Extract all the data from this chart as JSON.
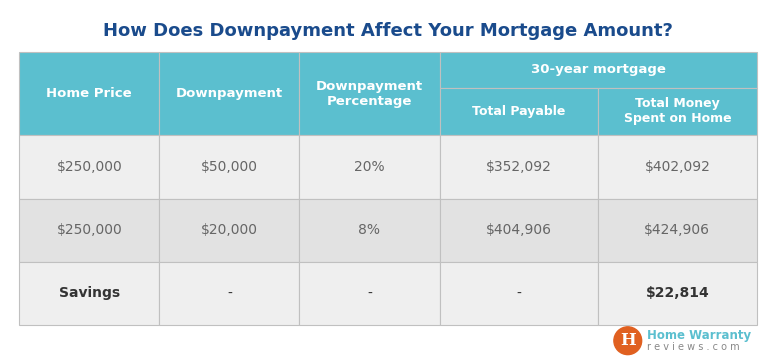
{
  "title": "How Does Downpayment Affect Your Mortgage Amount?",
  "title_color": "#1a4b8c",
  "title_fontsize": 13,
  "header_bg_color": "#5bbfcf",
  "header_text_color": "#ffffff",
  "row1_bg_color": "#efefef",
  "row2_bg_color": "#e2e2e2",
  "row3_bg_color": "#efefef",
  "body_text_color": "#666666",
  "savings_label_color": "#333333",
  "savings_value_color": "#333333",
  "border_color": "#c0c0c0",
  "col_headers": [
    "Home Price",
    "Downpayment",
    "Downpayment\nPercentage",
    "Total Payable",
    "Total Money\nSpent on Home"
  ],
  "merged_header": "30-year mortgage",
  "rows": [
    [
      "$250,000",
      "$50,000",
      "20%",
      "$352,092",
      "$402,092"
    ],
    [
      "$250,000",
      "$20,000",
      "8%",
      "$404,906",
      "$424,906"
    ],
    [
      "Savings",
      "-",
      "-",
      "-",
      "$22,814"
    ]
  ],
  "logo_circle_color": "#e06020",
  "logo_text_color": "#5bbfcf",
  "logo_sub_color": "#888888"
}
